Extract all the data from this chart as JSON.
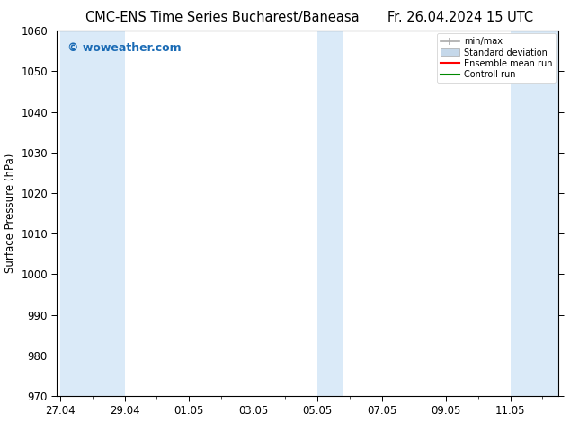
{
  "title_left": "CMC-ENS Time Series Bucharest/Baneasa",
  "title_right": "Fr. 26.04.2024 15 UTC",
  "ylabel": "Surface Pressure (hPa)",
  "ylim": [
    970,
    1060
  ],
  "yticks": [
    970,
    980,
    990,
    1000,
    1010,
    1020,
    1030,
    1040,
    1050,
    1060
  ],
  "xtick_labels": [
    "27.04",
    "29.04",
    "01.05",
    "03.05",
    "05.05",
    "07.05",
    "09.05",
    "11.05"
  ],
  "xtick_positions": [
    0,
    2,
    4,
    6,
    8,
    10,
    12,
    14
  ],
  "xmin": -0.1,
  "xmax": 15.5,
  "watermark": "© woweather.com",
  "watermark_color": "#1a6bb5",
  "background_color": "#ffffff",
  "plot_bg_color": "#ffffff",
  "band_color": "#daeaf8",
  "band_ranges": [
    [
      0.0,
      2.0
    ],
    [
      8.0,
      8.8
    ],
    [
      14.0,
      15.5
    ]
  ],
  "legend_labels": [
    "min/max",
    "Standard deviation",
    "Ensemble mean run",
    "Controll run"
  ],
  "legend_colors": [
    "#aaaaaa",
    "#c5d8ea",
    "#ff0000",
    "#008800"
  ],
  "title_fontsize": 10.5,
  "tick_fontsize": 8.5,
  "label_fontsize": 8.5,
  "watermark_fontsize": 9
}
